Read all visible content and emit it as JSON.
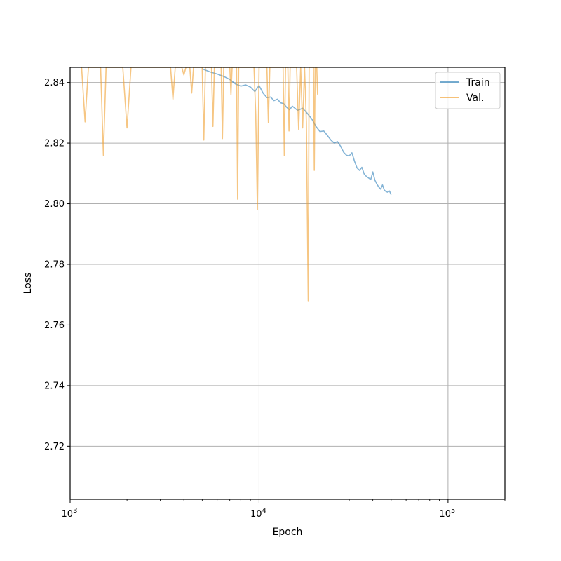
{
  "chart_data": {
    "type": "line",
    "xlabel": "Epoch",
    "ylabel": "Loss",
    "x_scale": "log",
    "xlim": [
      1000,
      200000
    ],
    "ylim": [
      2.7025,
      2.845
    ],
    "x_ticks": [
      {
        "value": 1000,
        "base": "10",
        "exp": "3"
      },
      {
        "value": 10000,
        "base": "10",
        "exp": "4"
      },
      {
        "value": 100000,
        "base": "10",
        "exp": "5"
      }
    ],
    "y_ticks": [
      {
        "value": 2.72,
        "label": "2.72"
      },
      {
        "value": 2.74,
        "label": "2.74"
      },
      {
        "value": 2.76,
        "label": "2.76"
      },
      {
        "value": 2.78,
        "label": "2.78"
      },
      {
        "value": 2.8,
        "label": "2.80"
      },
      {
        "value": 2.82,
        "label": "2.82"
      },
      {
        "value": 2.84,
        "label": "2.84"
      }
    ],
    "grid": true,
    "legend_position": "top-right",
    "series": [
      {
        "name": "Train",
        "color": "#1f77b4",
        "opacity": 0.55,
        "x": [
          5000,
          5500,
          6000,
          6500,
          7000,
          7500,
          8000,
          8500,
          9000,
          9500,
          10000,
          10500,
          11000,
          11500,
          12000,
          12500,
          13000,
          13500,
          14000,
          14500,
          15000,
          16000,
          17000,
          18000,
          19000,
          20000,
          21000,
          22000,
          23000,
          24000,
          25000,
          26000,
          27000,
          28000,
          29000,
          30000,
          31000,
          32000,
          33000,
          34000,
          35000,
          36000,
          37000,
          38000,
          39000,
          40000,
          41000,
          42000,
          43000,
          44000,
          45000,
          46000,
          47000,
          48000,
          49000,
          50000
        ],
        "y": [
          2.8445,
          2.8435,
          2.8428,
          2.842,
          2.841,
          2.8395,
          2.8388,
          2.8392,
          2.8385,
          2.837,
          2.839,
          2.8365,
          2.835,
          2.8352,
          2.834,
          2.8345,
          2.8333,
          2.833,
          2.8318,
          2.831,
          2.8322,
          2.8308,
          2.8315,
          2.8298,
          2.828,
          2.8255,
          2.8238,
          2.824,
          2.8225,
          2.821,
          2.82,
          2.8205,
          2.819,
          2.817,
          2.816,
          2.8158,
          2.8168,
          2.814,
          2.8118,
          2.811,
          2.812,
          2.8098,
          2.809,
          2.8085,
          2.808,
          2.8105,
          2.8078,
          2.8065,
          2.8055,
          2.8048,
          2.8062,
          2.8045,
          2.804,
          2.8038,
          2.8042,
          2.803
        ]
      },
      {
        "name": "Val.",
        "color": "#f0a030",
        "opacity": 0.6,
        "x": [
          1150,
          1200,
          1250,
          1450,
          1500,
          1550,
          1900,
          2000,
          2100,
          3400,
          3500,
          3600,
          3900,
          4000,
          4100,
          4300,
          4400,
          4500,
          5000,
          5100,
          5200,
          5600,
          5700,
          5800,
          6300,
          6400,
          6500,
          7000,
          7100,
          7200,
          7600,
          7700,
          7800,
          9400,
          9600,
          9800,
          10000,
          10200,
          11000,
          11200,
          11400,
          13400,
          13600,
          13800,
          14200,
          14400,
          14600,
          15800,
          16200,
          16600,
          17000,
          17400,
          17800,
          18200,
          18400,
          18600,
          19400,
          19600,
          19800,
          20200,
          20400
        ],
        "y": [
          2.845,
          2.827,
          2.845,
          2.845,
          2.816,
          2.845,
          2.845,
          2.825,
          2.845,
          2.845,
          2.8345,
          2.845,
          2.845,
          2.8425,
          2.845,
          2.845,
          2.8365,
          2.845,
          2.845,
          2.821,
          2.845,
          2.845,
          2.8255,
          2.845,
          2.845,
          2.8215,
          2.845,
          2.845,
          2.836,
          2.845,
          2.845,
          2.8015,
          2.845,
          2.845,
          2.8295,
          2.798,
          2.845,
          2.845,
          2.845,
          2.8268,
          2.845,
          2.845,
          2.8158,
          2.845,
          2.845,
          2.824,
          2.845,
          2.845,
          2.8245,
          2.845,
          2.825,
          2.845,
          2.8268,
          2.768,
          2.845,
          2.845,
          2.845,
          2.811,
          2.845,
          2.845,
          2.836
        ]
      }
    ]
  }
}
